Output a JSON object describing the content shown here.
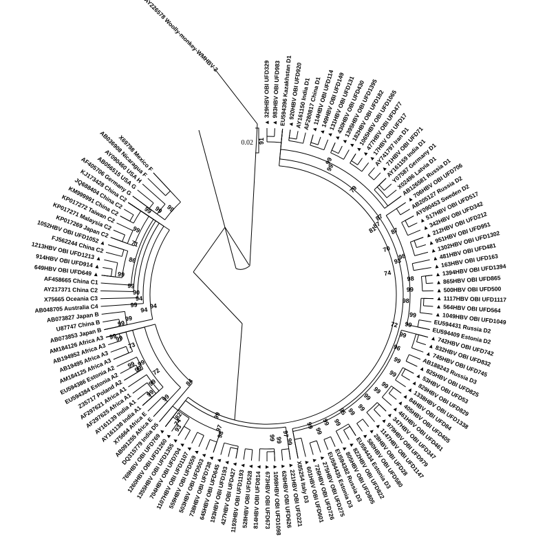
{
  "figure": {
    "type": "circular-phylogenetic-tree",
    "description": "Neighbor-joining phylogenetic tree of HBV S-gene sequences (OBI UFD samples marked with filled triangles) with reference genotypes A-H and woolly monkey HBV outgroup",
    "scale_bar": {
      "label": "0.02"
    },
    "root_support": "91",
    "line_color": "#000000",
    "background": "#ffffff"
  },
  "outgroup": {
    "label": "AY226578 Woolly-monkey-WMHBV-2",
    "marker": false
  },
  "tips": [
    {
      "label": "329HBV OBI UFD329",
      "marker": true
    },
    {
      "label": "983HBV OBI UFD983",
      "marker": true
    },
    {
      "label": "EU594396 Kazakhstan D1",
      "marker": false
    },
    {
      "label": "920HBV OBI UFD920",
      "marker": true
    },
    {
      "label": "AY161150 India D1",
      "marker": false
    },
    {
      "label": "AF280817 China D1",
      "marker": false
    },
    {
      "label": "114HBV OBI UFD114",
      "marker": true
    },
    {
      "label": "149HBV OBI UFD149",
      "marker": true
    },
    {
      "label": "131HBV OBI UFD131",
      "marker": true
    },
    {
      "label": "430HBV OBI UFD430",
      "marker": true
    },
    {
      "label": "1395HBV OBI UFD1395",
      "marker": true
    },
    {
      "label": "182HBV OBI UFD182",
      "marker": true
    },
    {
      "label": "1065HBV OBI UFD1065",
      "marker": true
    },
    {
      "label": "477HBV OBI UFD477",
      "marker": true
    },
    {
      "label": "17HBV OBI UFD17",
      "marker": true
    },
    {
      "label": "AY741797 Iran D1",
      "marker": false
    },
    {
      "label": "71HBV OBI UFD71",
      "marker": true
    },
    {
      "label": "AY161159 India D1",
      "marker": false
    },
    {
      "label": "Y07587 Germany D1",
      "marker": false
    },
    {
      "label": "X02496 Latvia D1",
      "marker": false
    },
    {
      "label": "AB126581 Russia D1",
      "marker": false
    },
    {
      "label": "706HBV OBI UFD706",
      "marker": true
    },
    {
      "label": "AB205127 Russia D2",
      "marker": false
    },
    {
      "label": "AY090453 Sweden D2",
      "marker": false
    },
    {
      "label": "517HBV OBI UFD517",
      "marker": true
    },
    {
      "label": "342HBV OBI UFD342",
      "marker": true
    },
    {
      "label": "212HBV OBI UFD212",
      "marker": true
    },
    {
      "label": "951HBV OBI UFD951",
      "marker": true
    },
    {
      "label": "1302HBV OBI UFD1302",
      "marker": true
    },
    {
      "label": "481HBV OBI UFD481",
      "marker": true
    },
    {
      "label": "163HBV OBI UFD163",
      "marker": true
    },
    {
      "label": "1394HBV OBI UFD1394",
      "marker": true
    },
    {
      "label": "865HBV OBI UFD865",
      "marker": true
    },
    {
      "label": "500HBV OBI UFD500",
      "marker": true
    },
    {
      "label": "1117HBV OBI UFD1117",
      "marker": true
    },
    {
      "label": "564HBV OBI UFD564",
      "marker": true
    },
    {
      "label": "1049HBV OBI UFD1049",
      "marker": true
    },
    {
      "label": "EU594431 Russia D2",
      "marker": false
    },
    {
      "label": "EU594409 Estonia D2",
      "marker": false
    },
    {
      "label": "742HBV OBI UFD742",
      "marker": true
    },
    {
      "label": "832HBV OBI UFD832",
      "marker": true
    },
    {
      "label": "745HBV OBI UFD745",
      "marker": true
    },
    {
      "label": "AB188243 Russia D3",
      "marker": false
    },
    {
      "label": "825HBV OBI UFD825",
      "marker": true
    },
    {
      "label": "53HBV OBI UFD53",
      "marker": true
    },
    {
      "label": "829HBV OBI UFD829",
      "marker": true
    },
    {
      "label": "1338HBV OBI UFD1338",
      "marker": true
    },
    {
      "label": "84HBV OBI UFD84",
      "marker": true
    },
    {
      "label": "405HBV OBI UFD405",
      "marker": true
    },
    {
      "label": "461HBV OBI UFD461",
      "marker": true
    },
    {
      "label": "347HBV OBI UFD347",
      "marker": true
    },
    {
      "label": "979HBV OBI UFD979",
      "marker": true
    },
    {
      "label": "1147HBV OBI UFD1147",
      "marker": true
    },
    {
      "label": "28HBV OBI UFD28",
      "marker": true
    },
    {
      "label": "580HBV OBI UFD580",
      "marker": true
    },
    {
      "label": "EU594434 Estonia D3",
      "marker": false
    },
    {
      "label": "822HBV OBI UFD822",
      "marker": true
    },
    {
      "label": "805HBV OBI UFD805",
      "marker": true
    },
    {
      "label": "EU594382 Russia D3",
      "marker": false
    },
    {
      "label": "EU594435 Estonia D3",
      "marker": false
    },
    {
      "label": "275HBV OBI UFD275",
      "marker": true
    },
    {
      "label": "726HBV OBI UFD726",
      "marker": true
    },
    {
      "label": "601HBV OBI UFD601",
      "marker": true
    },
    {
      "label": "X85254 Italy D3",
      "marker": false
    },
    {
      "label": "221HBV OBI UFD221",
      "marker": true
    },
    {
      "label": "626HBV OBI UFD626",
      "marker": true
    },
    {
      "label": "1098HBV OBI UFD1098",
      "marker": true
    },
    {
      "label": "673HBV OBI UFD673",
      "marker": true
    },
    {
      "label": "814HBV OBI UFD814",
      "marker": true
    },
    {
      "label": "528HBV OBI UFD528",
      "marker": true
    },
    {
      "label": "1193HBV OBI UFD1193",
      "marker": true
    },
    {
      "label": "427HBV OBI UFD427",
      "marker": true
    },
    {
      "label": "193HBV OBI UFD193",
      "marker": true
    },
    {
      "label": "645HBV OBI UFD645",
      "marker": true
    },
    {
      "label": "738HBV OBI UFD738",
      "marker": true
    },
    {
      "label": "503HBV OBI UFD503",
      "marker": true
    },
    {
      "label": "559HBV OBI UFD559",
      "marker": true
    },
    {
      "label": "1107HBV OBI UFD1107",
      "marker": true
    },
    {
      "label": "704HBV OBI UFD704",
      "marker": true
    },
    {
      "label": "1355HBV OBI UFD1355",
      "marker": true
    },
    {
      "label": "1260HBV OBI UFD1260",
      "marker": true
    },
    {
      "label": "769HBV OBI UFD769",
      "marker": true
    },
    {
      "label": "DQ315779 India D5",
      "marker": false
    },
    {
      "label": "AB091255 Africa E",
      "marker": false
    },
    {
      "label": "X75664 Africa E",
      "marker": false
    },
    {
      "label": "AY161138 India A1",
      "marker": false
    },
    {
      "label": "AY161139 India A1",
      "marker": false
    },
    {
      "label": "AF297625 Africa A1",
      "marker": false
    },
    {
      "label": "AF297621 Africa A1",
      "marker": false
    },
    {
      "label": "Z35717 Poland A2",
      "marker": false
    },
    {
      "label": "EU594384 Estonia A2",
      "marker": false
    },
    {
      "label": "EU594386 Estonia A2",
      "marker": false
    },
    {
      "label": "AM184125 Africa A3",
      "marker": false
    },
    {
      "label": "AB19495 Africa A3",
      "marker": false
    },
    {
      "label": "AB194952 Africa A3",
      "marker": false
    },
    {
      "label": "AM184126 Africa A3",
      "marker": false
    },
    {
      "label": "AB073853 Japan B",
      "marker": false
    },
    {
      "label": "U87747 China B",
      "marker": false
    },
    {
      "label": "AB073827 Japan B",
      "marker": false
    },
    {
      "label": "AB048705 Australia C4",
      "marker": false
    },
    {
      "label": "X75665 Oceania C3",
      "marker": false
    },
    {
      "label": "AY217371 China C2",
      "marker": false
    },
    {
      "label": "AF458665 China C1",
      "marker": false
    },
    {
      "label": "649HBV OBI UFD649",
      "marker": true
    },
    {
      "label": "914HBV OBI UFD914",
      "marker": true
    },
    {
      "label": "1213HBV OBI UFD1213",
      "marker": true
    },
    {
      "label": "FJ562244 China C2",
      "marker": false
    },
    {
      "label": "1052HBV OBI UFD1052",
      "marker": true
    },
    {
      "label": "KP017269 Japan C2",
      "marker": false
    },
    {
      "label": "KP017271 Malaysia C2",
      "marker": false
    },
    {
      "label": "KP017272 Taiwan C2",
      "marker": false
    },
    {
      "label": "KM999991 China C2",
      "marker": false
    },
    {
      "label": "JQ688404 China C2",
      "marker": false
    },
    {
      "label": "KJ173428 China C2",
      "marker": false
    },
    {
      "label": "AF405706 Germany G",
      "marker": false
    },
    {
      "label": "AB056515 USA G",
      "marker": false
    },
    {
      "label": "AY090460 USA H",
      "marker": false
    },
    {
      "label": "AB036908 Nicaragua F",
      "marker": false
    },
    {
      "label": "X69798 Mexico F",
      "marker": false
    }
  ],
  "bootstraps": [
    {
      "t": 9.3,
      "r": 214,
      "v": "99"
    },
    {
      "t": 9.9,
      "r": 206,
      "v": "99"
    },
    {
      "t": 14.7,
      "r": 198,
      "v": "79"
    },
    {
      "t": 20.7,
      "r": 198,
      "v": "87"
    },
    {
      "t": 21.5,
      "r": 189,
      "v": "87"
    },
    {
      "t": 21.8,
      "r": 180,
      "v": "81"
    },
    {
      "t": 23.7,
      "r": 207,
      "v": "87"
    },
    {
      "t": 25.8,
      "r": 186,
      "v": "70"
    },
    {
      "t": 27.7,
      "r": 204,
      "v": "98"
    },
    {
      "t": 28.2,
      "r": 196,
      "v": "93"
    },
    {
      "t": 29.8,
      "r": 178,
      "v": "74"
    },
    {
      "t": 31.2,
      "r": 210,
      "v": "98"
    },
    {
      "t": 32.8,
      "r": 208,
      "v": "99"
    },
    {
      "t": 34.5,
      "r": 202,
      "v": "98"
    },
    {
      "t": 36.5,
      "r": 214,
      "v": "99"
    },
    {
      "t": 38.0,
      "r": 210,
      "v": "99"
    },
    {
      "t": 38.5,
      "r": 190,
      "v": "72"
    },
    {
      "t": 39.7,
      "r": 206,
      "v": "99"
    },
    {
      "t": 41.8,
      "r": 204,
      "v": "96"
    },
    {
      "t": 43.5,
      "r": 212,
      "v": "99"
    },
    {
      "t": 45.5,
      "r": 216,
      "v": "99"
    },
    {
      "t": 47.5,
      "r": 216,
      "v": "99"
    },
    {
      "t": 48.8,
      "r": 212,
      "v": "99"
    },
    {
      "t": 50.5,
      "r": 208,
      "v": "99"
    },
    {
      "t": 52.2,
      "r": 214,
      "v": "99"
    },
    {
      "t": 53.7,
      "r": 210,
      "v": "99"
    },
    {
      "t": 54.8,
      "r": 202,
      "v": "95"
    },
    {
      "t": 56.3,
      "r": 212,
      "v": "99"
    },
    {
      "t": 57.8,
      "r": 204,
      "v": "99"
    },
    {
      "t": 59.3,
      "r": 212,
      "v": "99"
    },
    {
      "t": 60.3,
      "r": 200,
      "v": "99"
    },
    {
      "t": 63.8,
      "r": 216,
      "v": "99"
    },
    {
      "t": 64.2,
      "r": 204,
      "v": "97"
    },
    {
      "t": 65.3,
      "r": 212,
      "v": "99"
    },
    {
      "t": 66.3,
      "r": 208,
      "v": "99"
    },
    {
      "t": 73.8,
      "r": 214,
      "v": "98"
    },
    {
      "t": 74.3,
      "r": 206,
      "v": "97"
    },
    {
      "t": 75.3,
      "r": 190,
      "v": "99"
    },
    {
      "t": 79.5,
      "r": 233,
      "v": "93"
    },
    {
      "t": 80.0,
      "r": 226,
      "v": "74"
    },
    {
      "t": 80.4,
      "r": 218,
      "v": "82"
    },
    {
      "t": 82.4,
      "r": 170,
      "v": "84"
    },
    {
      "t": 83.5,
      "r": 210,
      "v": "99"
    },
    {
      "t": 85.5,
      "r": 222,
      "v": "99"
    },
    {
      "t": 86.5,
      "r": 210,
      "v": "99"
    },
    {
      "t": 87.5,
      "r": 196,
      "v": "72"
    },
    {
      "t": 89.3,
      "r": 216,
      "v": "99"
    },
    {
      "t": 89.8,
      "r": 208,
      "v": "99"
    },
    {
      "t": 90.3,
      "r": 222,
      "v": "99"
    },
    {
      "t": 92.8,
      "r": 210,
      "v": "73"
    },
    {
      "t": 94.3,
      "r": 224,
      "v": "99"
    },
    {
      "t": 94.8,
      "r": 232,
      "v": "99"
    },
    {
      "t": 96.3,
      "r": 216,
      "v": "99"
    },
    {
      "t": 96.8,
      "r": 204,
      "v": "99"
    },
    {
      "t": 97.8,
      "r": 180,
      "v": "94"
    },
    {
      "t": 98.3,
      "r": 166,
      "v": "94"
    },
    {
      "t": 98.8,
      "r": 194,
      "v": "99"
    },
    {
      "t": 99.8,
      "r": 186,
      "v": "94"
    },
    {
      "t": 100.8,
      "r": 190,
      "v": "90"
    },
    {
      "t": 101.8,
      "r": 198,
      "v": "99"
    },
    {
      "t": 103.4,
      "r": 214,
      "v": "99"
    },
    {
      "t": 105.8,
      "r": 202,
      "v": "86"
    },
    {
      "t": 108.3,
      "r": 206,
      "v": "71"
    },
    {
      "t": 110.3,
      "r": 212,
      "v": "99"
    },
    {
      "t": 113.6,
      "r": 212,
      "v": "99"
    },
    {
      "t": 114.6,
      "r": 200,
      "v": "99"
    },
    {
      "t": 116.0,
      "r": 188,
      "v": "99"
    }
  ]
}
